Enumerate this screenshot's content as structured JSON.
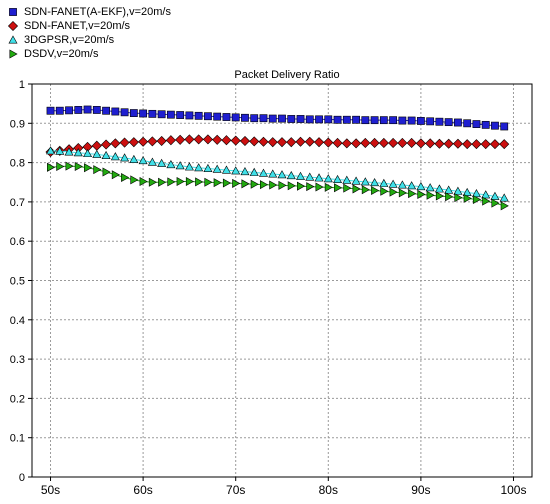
{
  "chart_data": {
    "type": "line",
    "title": "Packet Delivery Ratio",
    "xlabel": "",
    "ylabel": "",
    "xlim": [
      48,
      102
    ],
    "ylim": [
      0,
      1
    ],
    "grid": true,
    "legend_position": "top-left, outside plot",
    "x_ticks": [
      {
        "value": 50,
        "label": "50s"
      },
      {
        "value": 60,
        "label": "60s"
      },
      {
        "value": 70,
        "label": "70s"
      },
      {
        "value": 80,
        "label": "80s"
      },
      {
        "value": 90,
        "label": "90s"
      },
      {
        "value": 100,
        "label": "100s"
      }
    ],
    "y_ticks": [
      {
        "value": 0,
        "label": "0"
      },
      {
        "value": 0.1,
        "label": "0.1"
      },
      {
        "value": 0.2,
        "label": "0.2"
      },
      {
        "value": 0.3,
        "label": "0.3"
      },
      {
        "value": 0.4,
        "label": "0.4"
      },
      {
        "value": 0.5,
        "label": "0.5"
      },
      {
        "value": 0.6,
        "label": "0.6"
      },
      {
        "value": 0.7,
        "label": "0.7"
      },
      {
        "value": 0.8,
        "label": "0.8"
      },
      {
        "value": 0.9,
        "label": "0.9"
      },
      {
        "value": 1,
        "label": "1"
      }
    ],
    "x": [
      50,
      51,
      52,
      53,
      54,
      55,
      56,
      57,
      58,
      59,
      60,
      61,
      62,
      63,
      64,
      65,
      66,
      67,
      68,
      69,
      70,
      71,
      72,
      73,
      74,
      75,
      76,
      77,
      78,
      79,
      80,
      81,
      82,
      83,
      84,
      85,
      86,
      87,
      88,
      89,
      90,
      91,
      92,
      93,
      94,
      95,
      96,
      97,
      98,
      99
    ],
    "series": [
      {
        "name": "SDN-FANET(A-EKF),v=20m/s",
        "marker": "square",
        "color": "#1f1fd0",
        "values": [
          0.932,
          0.932,
          0.933,
          0.934,
          0.935,
          0.934,
          0.932,
          0.93,
          0.928,
          0.926,
          0.925,
          0.924,
          0.923,
          0.922,
          0.921,
          0.92,
          0.919,
          0.918,
          0.917,
          0.916,
          0.915,
          0.914,
          0.913,
          0.913,
          0.912,
          0.912,
          0.911,
          0.911,
          0.91,
          0.91,
          0.91,
          0.909,
          0.909,
          0.909,
          0.908,
          0.908,
          0.908,
          0.908,
          0.907,
          0.907,
          0.906,
          0.905,
          0.904,
          0.903,
          0.902,
          0.9,
          0.898,
          0.896,
          0.894,
          0.892
        ]
      },
      {
        "name": "SDN-FANET,v=20m/s",
        "marker": "diamond",
        "color": "#cc1010",
        "values": [
          0.827,
          0.83,
          0.834,
          0.837,
          0.84,
          0.843,
          0.846,
          0.849,
          0.851,
          0.852,
          0.853,
          0.854,
          0.855,
          0.857,
          0.858,
          0.859,
          0.859,
          0.859,
          0.858,
          0.857,
          0.856,
          0.855,
          0.854,
          0.853,
          0.852,
          0.852,
          0.852,
          0.853,
          0.853,
          0.852,
          0.851,
          0.85,
          0.849,
          0.849,
          0.85,
          0.85,
          0.85,
          0.85,
          0.85,
          0.85,
          0.849,
          0.849,
          0.848,
          0.848,
          0.848,
          0.847,
          0.847,
          0.847,
          0.847,
          0.847
        ]
      },
      {
        "name": "3DGPSR,v=20m/s",
        "marker": "triangle-up",
        "color": "#40e0e8",
        "values": [
          0.83,
          0.829,
          0.827,
          0.825,
          0.823,
          0.821,
          0.818,
          0.815,
          0.812,
          0.808,
          0.805,
          0.801,
          0.798,
          0.795,
          0.792,
          0.789,
          0.787,
          0.785,
          0.783,
          0.781,
          0.779,
          0.777,
          0.775,
          0.773,
          0.771,
          0.769,
          0.767,
          0.765,
          0.763,
          0.761,
          0.759,
          0.757,
          0.755,
          0.753,
          0.751,
          0.749,
          0.747,
          0.745,
          0.743,
          0.741,
          0.739,
          0.736,
          0.733,
          0.73,
          0.727,
          0.724,
          0.721,
          0.718,
          0.714,
          0.71
        ]
      },
      {
        "name": "DSDV,v=20m/s",
        "marker": "triangle-right",
        "color": "#22aa10",
        "values": [
          0.788,
          0.79,
          0.791,
          0.79,
          0.787,
          0.782,
          0.776,
          0.769,
          0.762,
          0.756,
          0.752,
          0.75,
          0.75,
          0.751,
          0.752,
          0.752,
          0.751,
          0.75,
          0.749,
          0.748,
          0.747,
          0.746,
          0.745,
          0.744,
          0.743,
          0.742,
          0.741,
          0.74,
          0.739,
          0.738,
          0.737,
          0.736,
          0.735,
          0.733,
          0.731,
          0.729,
          0.727,
          0.725,
          0.723,
          0.721,
          0.719,
          0.717,
          0.715,
          0.713,
          0.711,
          0.709,
          0.706,
          0.702,
          0.697,
          0.69
        ]
      }
    ]
  }
}
